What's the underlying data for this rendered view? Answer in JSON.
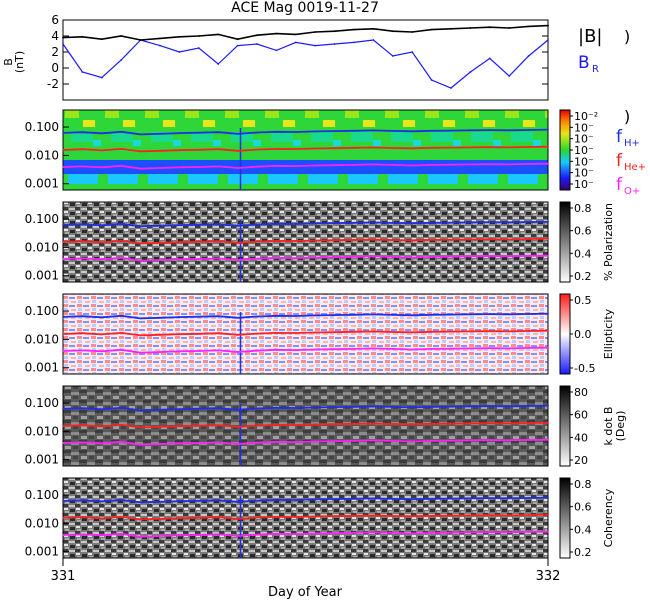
{
  "title": "ACE Mag 0019-11-27",
  "xlabel": "Day of Year",
  "x_ticks": [
    "331",
    "332"
  ],
  "legend": {
    "bmag": "|B|",
    "br_main": "B",
    "br_sub": "R",
    "fh_main": "f",
    "fh_sub": "H+",
    "fhe_main": "f",
    "fhe_sub": "He+",
    "fo_main": "f",
    "fo_sub": "O+",
    "paren": ")"
  },
  "colors": {
    "bmag": "#000000",
    "br": "#1a1aff",
    "fh": "#1f2fe6",
    "fhe": "#ff2020",
    "fo": "#ff20ff"
  },
  "panels": [
    {
      "id": "b",
      "ylabel_main": "B",
      "ylabel_unit": "(nT)"
    },
    {
      "id": "power",
      "cbar_label": "",
      "cbar_ticks": [
        "10⁻²",
        "10⁻",
        "10⁻",
        "10⁻",
        "10⁻",
        "10⁻",
        "10⁻"
      ]
    },
    {
      "id": "polarization",
      "cbar_label": "% Polarization",
      "cbar_ticks": [
        "0.8",
        "0.6",
        "0.4",
        "0.2"
      ]
    },
    {
      "id": "ellipticity",
      "cbar_label": "Ellipticity",
      "cbar_ticks": [
        "0.5",
        "0.0",
        "-0.5"
      ]
    },
    {
      "id": "kdotb",
      "cbar_label": "k dot B",
      "cbar_label2": "(Deg)",
      "cbar_ticks": [
        "80",
        "60",
        "40",
        "20"
      ]
    },
    {
      "id": "coherency",
      "cbar_label": "Coherency",
      "cbar_ticks": [
        "0.8",
        "0.6",
        "0.4",
        "0.2"
      ]
    }
  ],
  "freq_ticks": [
    "0.100",
    "0.010",
    "0.001"
  ],
  "chart_data": {
    "type": "line",
    "title": "ACE Mag 0019-11-27",
    "xlabel": "Day of Year",
    "xlim": [
      331,
      332
    ],
    "b_panel": {
      "ylabel": "B (nT)",
      "ylim": [
        -4,
        6
      ],
      "y_ticks": [
        6,
        4,
        2,
        0,
        -2
      ],
      "x": [
        331.0,
        331.04,
        331.08,
        331.12,
        331.16,
        331.2,
        331.24,
        331.28,
        331.32,
        331.36,
        331.4,
        331.44,
        331.48,
        331.52,
        331.56,
        331.6,
        331.64,
        331.68,
        331.72,
        331.76,
        331.8,
        331.84,
        331.88,
        331.92,
        331.96,
        332.0
      ],
      "series": [
        {
          "name": "|B|",
          "values": [
            3.8,
            3.9,
            3.6,
            4.0,
            3.5,
            3.7,
            3.9,
            4.0,
            4.2,
            3.6,
            4.1,
            4.3,
            4.2,
            4.5,
            4.6,
            4.8,
            4.9,
            4.6,
            4.5,
            4.8,
            4.9,
            5.0,
            5.1,
            5.0,
            5.2,
            5.3
          ]
        },
        {
          "name": "B_R",
          "values": [
            3.0,
            -0.5,
            -1.2,
            1.0,
            3.5,
            2.8,
            2.0,
            2.5,
            0.5,
            2.8,
            3.0,
            2.2,
            3.2,
            2.8,
            3.0,
            3.2,
            3.5,
            1.5,
            2.0,
            -1.5,
            -2.5,
            -0.5,
            1.2,
            -1.0,
            1.5,
            3.5
          ]
        }
      ]
    },
    "frequency_panels": {
      "ylim_log": [
        0.0006,
        0.4
      ],
      "y_ticks": [
        0.1,
        0.01,
        0.001
      ],
      "x": [
        331.0,
        331.04,
        331.08,
        331.12,
        331.16,
        331.2,
        331.24,
        331.28,
        331.32,
        331.36,
        331.4,
        331.44,
        331.48,
        331.52,
        331.56,
        331.6,
        331.64,
        331.68,
        331.72,
        331.76,
        331.8,
        331.84,
        331.88,
        331.92,
        331.96,
        332.0
      ],
      "series": [
        {
          "name": "f_H+",
          "values": [
            0.062,
            0.066,
            0.06,
            0.068,
            0.055,
            0.058,
            0.061,
            0.063,
            0.066,
            0.058,
            0.064,
            0.068,
            0.067,
            0.07,
            0.072,
            0.074,
            0.076,
            0.073,
            0.071,
            0.074,
            0.075,
            0.077,
            0.078,
            0.077,
            0.079,
            0.081
          ]
        },
        {
          "name": "f_He+",
          "values": [
            0.0155,
            0.0165,
            0.015,
            0.017,
            0.0138,
            0.0145,
            0.0153,
            0.0158,
            0.0165,
            0.0145,
            0.016,
            0.017,
            0.0168,
            0.0175,
            0.018,
            0.0185,
            0.019,
            0.0182,
            0.0178,
            0.0185,
            0.0188,
            0.0192,
            0.0195,
            0.0192,
            0.0198,
            0.0203
          ]
        },
        {
          "name": "f_O+",
          "values": [
            0.0039,
            0.0041,
            0.0038,
            0.0043,
            0.0034,
            0.0036,
            0.0038,
            0.0039,
            0.0041,
            0.0036,
            0.004,
            0.0043,
            0.0042,
            0.0044,
            0.0045,
            0.0046,
            0.0048,
            0.0046,
            0.0044,
            0.0046,
            0.0047,
            0.0048,
            0.0049,
            0.0048,
            0.005,
            0.0051
          ]
        }
      ]
    }
  }
}
